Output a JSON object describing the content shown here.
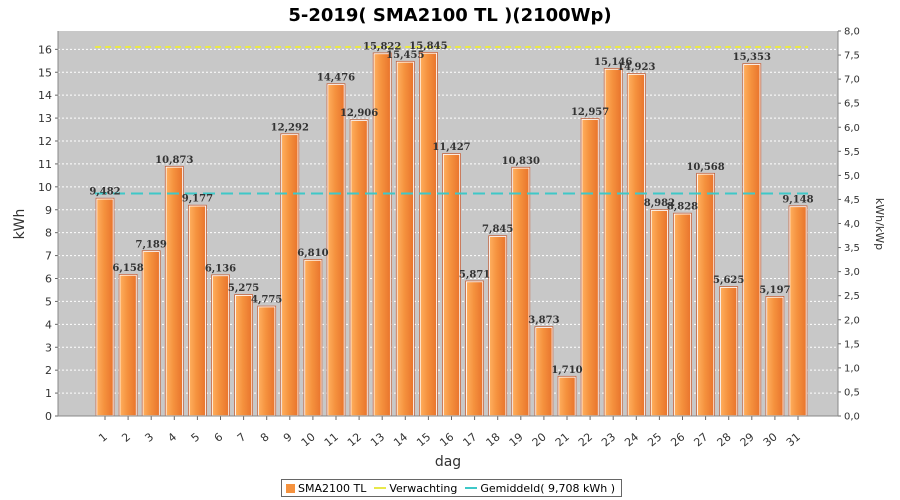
{
  "chart_data": {
    "type": "bar",
    "title": "5-2019( SMA2100 TL )(2100Wp)",
    "xlabel": "dag",
    "ylabel": "kWh",
    "y2label": "kWh/kWp",
    "ylim": [
      0,
      16.8
    ],
    "y2lim": [
      0,
      8.0
    ],
    "yticks": [
      "0",
      "1",
      "2",
      "3",
      "4",
      "5",
      "6",
      "7",
      "8",
      "9",
      "10",
      "11",
      "12",
      "13",
      "14",
      "15",
      "16"
    ],
    "y2ticks": [
      "0,0",
      "0,5",
      "1,0",
      "1,5",
      "2,0",
      "2,5",
      "3,0",
      "3,5",
      "4,0",
      "4,5",
      "5,0",
      "5,5",
      "6,0",
      "6,5",
      "7,0",
      "7,5",
      "8,0"
    ],
    "categories": [
      "1",
      "2",
      "3",
      "4",
      "5",
      "6",
      "7",
      "8",
      "9",
      "10",
      "11",
      "12",
      "13",
      "14",
      "15",
      "16",
      "17",
      "18",
      "19",
      "20",
      "21",
      "22",
      "23",
      "24",
      "25",
      "26",
      "27",
      "28",
      "29",
      "30",
      "31"
    ],
    "values": [
      9.482,
      6.158,
      7.189,
      10.873,
      9.177,
      6.136,
      5.275,
      4.775,
      12.292,
      6.81,
      14.476,
      12.906,
      15.822,
      15.455,
      15.845,
      11.427,
      5.871,
      7.845,
      10.83,
      3.873,
      1.71,
      12.957,
      15.146,
      14.923,
      8.982,
      8.828,
      10.568,
      5.625,
      15.353,
      5.197,
      9.148
    ],
    "value_labels": [
      "9,482",
      "6,158",
      "7,189",
      "10,873",
      "9,177",
      "6,136",
      "5,275",
      "4,775",
      "12,292",
      "6,810",
      "14,476",
      "12,906",
      "15,822",
      "15,455",
      "15,845",
      "11,427",
      "5,871",
      "7,845",
      "10,830",
      "3,873",
      "1,710",
      "12,957",
      "15,146",
      "14,923",
      "8,982",
      "8,828",
      "10,568",
      "5,625",
      "15,353",
      "5,197",
      "9,148"
    ],
    "expected_value": 16.1,
    "average_value": 9.708,
    "legend": [
      {
        "label": "SMA2100 TL",
        "kind": "bar"
      },
      {
        "label": "Verwachting",
        "kind": "line"
      },
      {
        "label": "Gemiddeld( 9,708 kWh )",
        "kind": "line"
      }
    ],
    "colors": {
      "bar": "#f5923e",
      "bar_edge": "#c0603a",
      "plot_bg": "#c8c8c8",
      "expected": "#e8e84a",
      "average": "#3ec8c8"
    }
  }
}
